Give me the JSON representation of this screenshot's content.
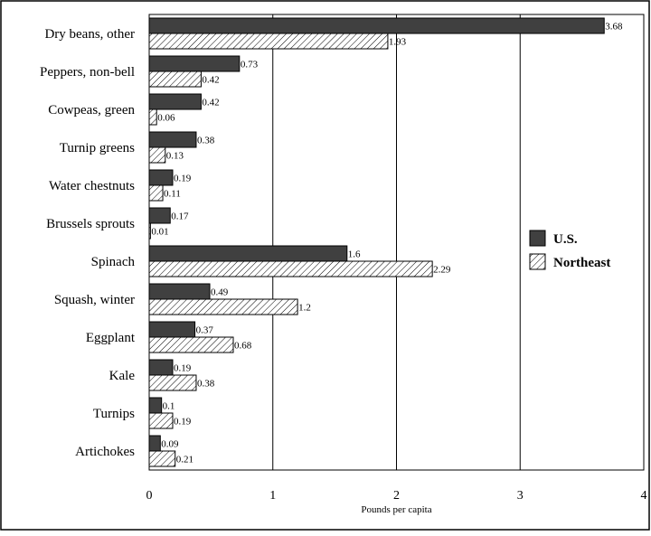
{
  "chart_data": {
    "type": "bar",
    "orientation": "horizontal",
    "title": "",
    "xlabel": "Pounds per capita",
    "ylabel": "",
    "xlim": [
      0,
      4
    ],
    "x_ticks": [
      0,
      1,
      2,
      3,
      4
    ],
    "grid": "vertical",
    "legend_position": "right",
    "categories": [
      "Dry beans, other",
      "Peppers, non-bell",
      "Cowpeas, green",
      "Turnip greens",
      "Water chestnuts",
      "Brussels sprouts",
      "Spinach",
      "Squash, winter",
      "Eggplant",
      "Kale",
      "Turnips",
      "Artichokes"
    ],
    "series": [
      {
        "name": "U.S.",
        "values": [
          3.68,
          0.73,
          0.42,
          0.38,
          0.19,
          0.17,
          1.6,
          0.49,
          0.37,
          0.19,
          0.1,
          0.09
        ],
        "labels": [
          "3.68",
          "0.73",
          "0.42",
          "0.38",
          "0.19",
          "0.17",
          "1.6",
          "0.49",
          "0.37",
          "0.19",
          "0.1",
          "0.09"
        ],
        "fill": "solid",
        "color": "#404040"
      },
      {
        "name": "Northeast",
        "values": [
          1.93,
          0.42,
          0.06,
          0.13,
          0.11,
          0.01,
          2.29,
          1.2,
          0.68,
          0.38,
          0.19,
          0.21
        ],
        "labels": [
          "1.93",
          "0.42",
          "0.06",
          "0.13",
          "0.11",
          "0.01",
          "2.29",
          "1.2",
          "0.68",
          "0.38",
          "0.19",
          "0.21"
        ],
        "fill": "hatched",
        "color": "#ffffff"
      }
    ]
  }
}
